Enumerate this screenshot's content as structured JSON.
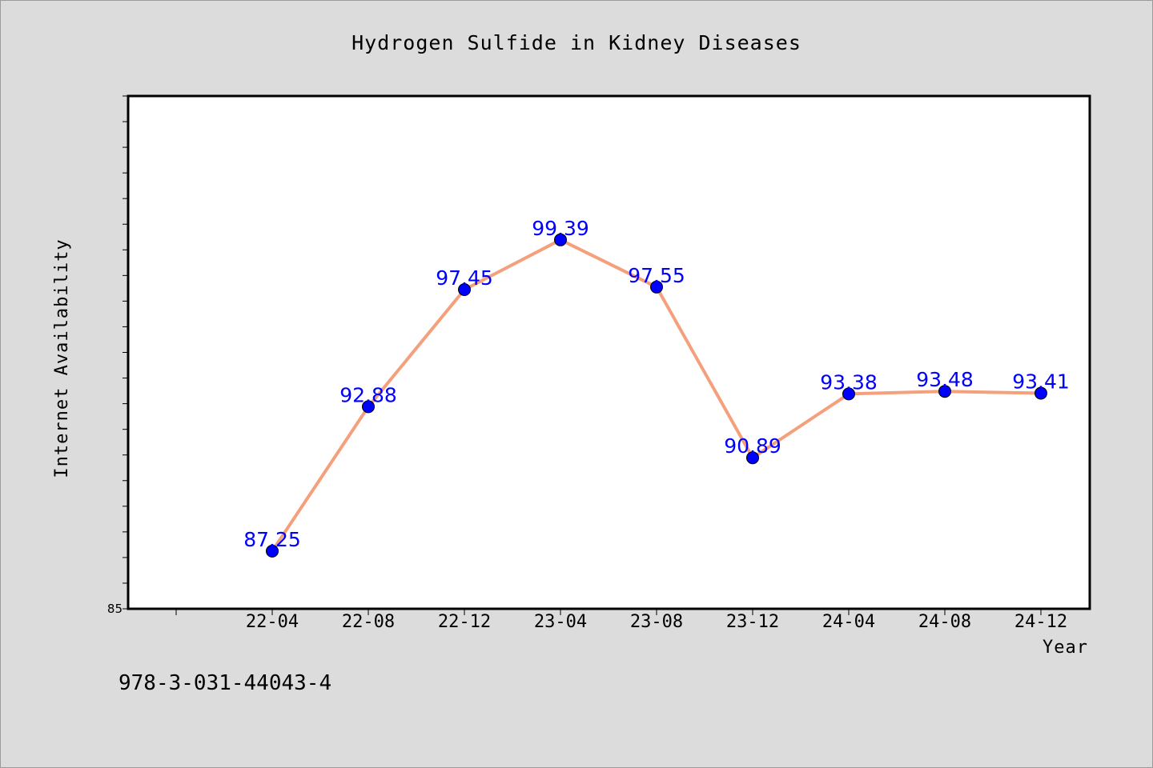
{
  "chart_data": {
    "type": "line",
    "title": "Hydrogen Sulfide in Kidney Diseases",
    "xlabel": "Year",
    "ylabel": "Internet Availability",
    "categories": [
      "22-04",
      "22-08",
      "22-12",
      "23-04",
      "23-08",
      "23-12",
      "24-04",
      "24-08",
      "24-12"
    ],
    "series": [
      {
        "values": [
          87.25,
          92.88,
          97.45,
          99.39,
          97.55,
          90.89,
          93.38,
          93.48,
          93.41
        ]
      }
    ],
    "data_labels": [
      "87.25",
      "92.88",
      "97.45",
      "99.39",
      "97.55",
      "90.89",
      "93.38",
      "93.48",
      "93.41"
    ],
    "ylim": [
      85,
      105
    ],
    "y_tick_labels": [
      "85"
    ],
    "grid": false,
    "legend": "none",
    "colors": {
      "line": "#f4a07c",
      "marker": "#0000ff",
      "label": "#0000ff",
      "plot_bg": "#ffffff",
      "page_bg": "#dcdcdc"
    }
  },
  "footnote": "978-3-031-44043-4"
}
